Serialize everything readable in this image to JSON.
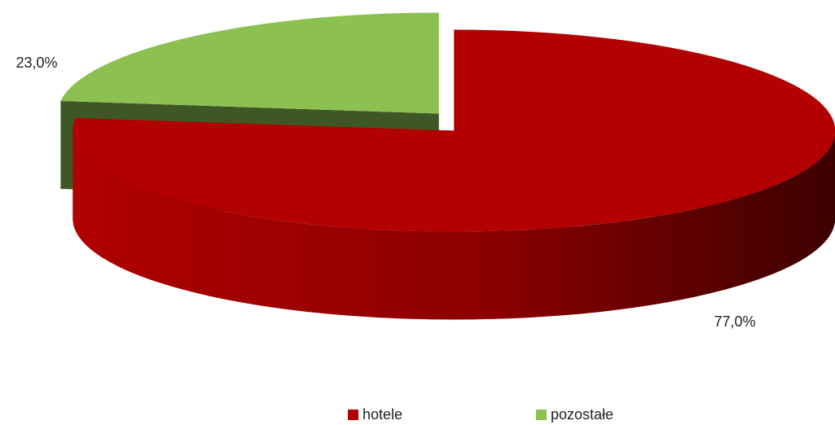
{
  "chart_data": {
    "type": "pie",
    "categories": [
      "hotele",
      "pozostałe"
    ],
    "values": [
      77,
      23
    ],
    "value_labels": [
      "77,0%",
      "23,0%"
    ],
    "colors": [
      "#b30000",
      "#8cc152"
    ],
    "legend": "bottom"
  }
}
